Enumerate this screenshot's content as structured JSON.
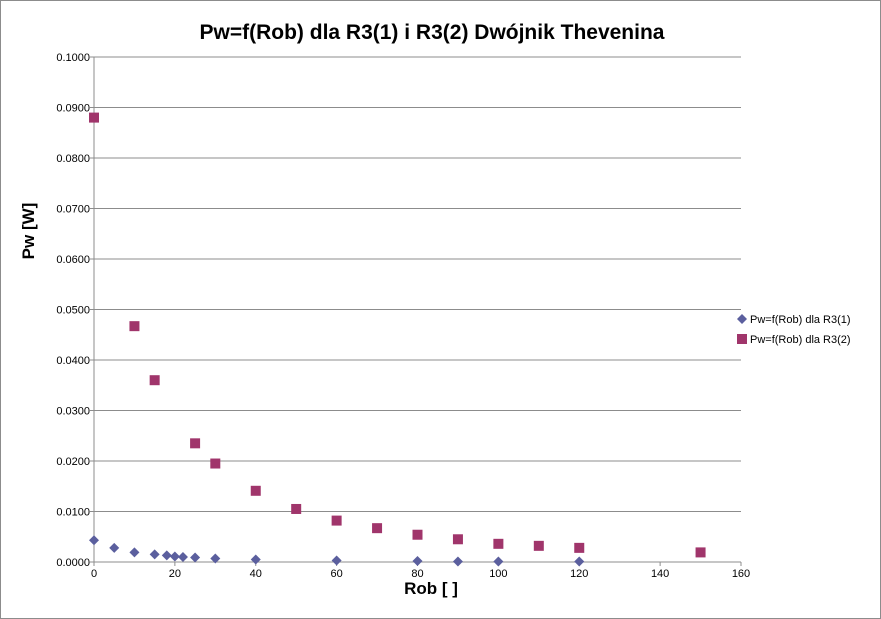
{
  "chart_data": {
    "type": "scatter",
    "title": "Pw=f(Rob) dla R3(1) i R3(2) Dwójnik Thevenina",
    "xlabel": "Rob [ ]",
    "ylabel": "Pw [W]",
    "xlim": [
      0,
      160
    ],
    "ylim": [
      0,
      0.1
    ],
    "x_ticks": [
      "0",
      "20",
      "40",
      "60",
      "80",
      "100",
      "120",
      "140",
      "160"
    ],
    "y_ticks": [
      "0.0000",
      "0.0100",
      "0.0200",
      "0.0300",
      "0.0400",
      "0.0500",
      "0.0600",
      "0.0700",
      "0.0800",
      "0.0900",
      "0.1000"
    ],
    "grid": "horizontal",
    "legend_position": "right",
    "series": [
      {
        "name": "Pw=f(Rob) dla R3(1)",
        "marker": "diamond",
        "color": "#5b5f9e",
        "points": [
          [
            0,
            0.0043
          ],
          [
            5,
            0.0028
          ],
          [
            10,
            0.0019
          ],
          [
            15,
            0.0015
          ],
          [
            18,
            0.0013
          ],
          [
            20,
            0.0011
          ],
          [
            22,
            0.001
          ],
          [
            25,
            0.0009
          ],
          [
            30,
            0.0007
          ],
          [
            40,
            0.0005
          ],
          [
            60,
            0.0003
          ],
          [
            80,
            0.0002
          ],
          [
            90,
            0.0001
          ],
          [
            100,
            0.0001
          ],
          [
            120,
            0.0001
          ]
        ]
      },
      {
        "name": "Pw=f(Rob) dla R3(2)",
        "marker": "square",
        "color": "#a0356b",
        "points": [
          [
            0,
            0.088
          ],
          [
            10,
            0.0467
          ],
          [
            15,
            0.036
          ],
          [
            25,
            0.0235
          ],
          [
            30,
            0.0195
          ],
          [
            40,
            0.0141
          ],
          [
            50,
            0.0105
          ],
          [
            60,
            0.0082
          ],
          [
            70,
            0.0067
          ],
          [
            80,
            0.0054
          ],
          [
            90,
            0.0045
          ],
          [
            100,
            0.0036
          ],
          [
            110,
            0.0032
          ],
          [
            120,
            0.0028
          ],
          [
            150,
            0.0019
          ]
        ]
      }
    ]
  }
}
